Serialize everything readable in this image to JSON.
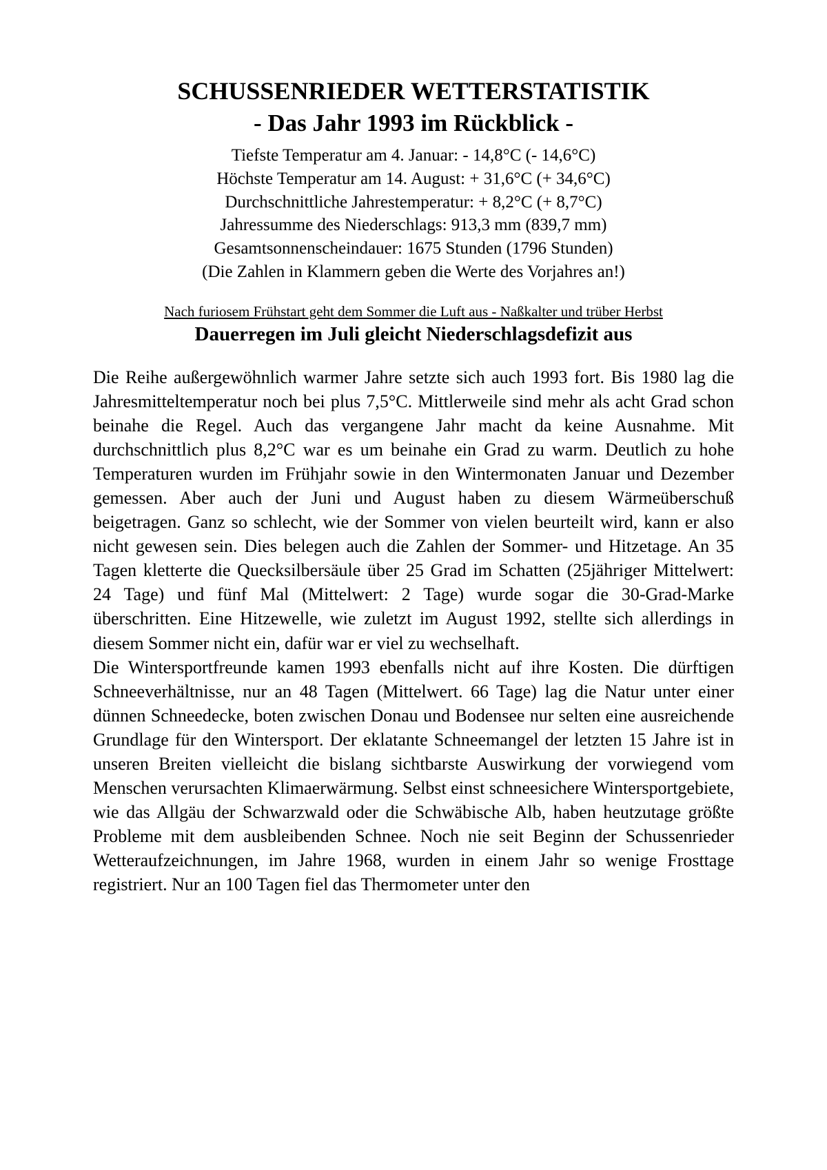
{
  "title": "SCHUSSENRIEDER WETTERSTATISTIK",
  "subtitle": "- Das Jahr 1993 im Rückblick -",
  "stats": {
    "line1": "Tiefste Temperatur am 4. Januar: - 14,8°C (- 14,6°C)",
    "line2": "Höchste Temperatur am 14. August: + 31,6°C (+ 34,6°C)",
    "line3": "Durchschnittliche Jahrestemperatur: + 8,2°C (+ 8,7°C)",
    "line4": "Jahressumme des Niederschlags: 913,3 mm (839,7 mm)",
    "line5": "Gesamtsonnenscheindauer: 1675 Stunden (1796 Stunden)",
    "line6": "(Die Zahlen in Klammern geben die Werte des Vorjahres an!)"
  },
  "overline": "Nach furiosem Frühstart geht dem Sommer die Luft aus - Naßkalter und trüber Herbst",
  "headline": "Dauerregen im Juli gleicht Niederschlagsdefizit aus",
  "body": {
    "para1": "Die Reihe außergewöhnlich warmer Jahre setzte sich auch 1993 fort. Bis 1980 lag die Jahresmitteltemperatur noch bei plus 7,5°C. Mittlerweile sind mehr als acht Grad schon beinahe die Regel. Auch das vergangene Jahr macht da keine Ausnahme. Mit durchschnittlich plus 8,2°C war es um beinahe ein Grad zu warm. Deutlich zu hohe Temperaturen wurden im Frühjahr sowie in den Wintermonaten Januar und Dezember gemessen. Aber auch der Juni und August haben zu diesem Wärmeüberschuß beigetragen. Ganz so schlecht, wie der Sommer von vielen beurteilt wird, kann er also nicht gewesen sein. Dies belegen auch die Zahlen der Sommer- und Hitzetage. An 35 Tagen kletterte die Quecksilbersäule über 25 Grad im Schatten (25jähriger Mittelwert: 24 Tage) und fünf Mal (Mittelwert: 2 Tage) wurde sogar die 30-Grad-Marke überschritten. Eine Hitzewelle, wie zuletzt im August 1992, stellte sich allerdings in diesem Sommer nicht ein, dafür war er viel zu wechselhaft.",
    "para2": "Die Wintersportfreunde kamen 1993 ebenfalls nicht auf ihre Kosten. Die dürftigen Schneeverhältnisse, nur an 48 Tagen (Mittelwert. 66 Tage) lag die Natur unter einer dünnen Schneedecke, boten zwischen Donau und Bodensee nur selten eine ausreichende Grundlage für den Wintersport. Der eklatante Schneemangel der letzten 15 Jahre ist in unseren Breiten vielleicht die bislang sichtbarste Auswirkung der vorwiegend vom Menschen verursachten Klimaerwärmung. Selbst einst schneesichere Wintersportgebiete, wie das Allgäu der Schwarzwald oder die Schwäbische Alb, haben heutzutage größte Probleme mit dem ausbleibenden Schnee. Noch nie seit Beginn der Schussenrieder Wetteraufzeichnungen, im Jahre 1968, wurden in einem Jahr so wenige Frosttage registriert. Nur an 100 Tagen fiel das Thermometer unter den"
  },
  "styles": {
    "page_bg": "#ffffff",
    "text_color": "#000000",
    "font_family": "Times New Roman",
    "title_fontsize": 36,
    "subtitle_fontsize": 35,
    "stats_fontsize": 25,
    "overline_fontsize": 21,
    "headline_fontsize": 29,
    "body_fontsize": 26
  }
}
